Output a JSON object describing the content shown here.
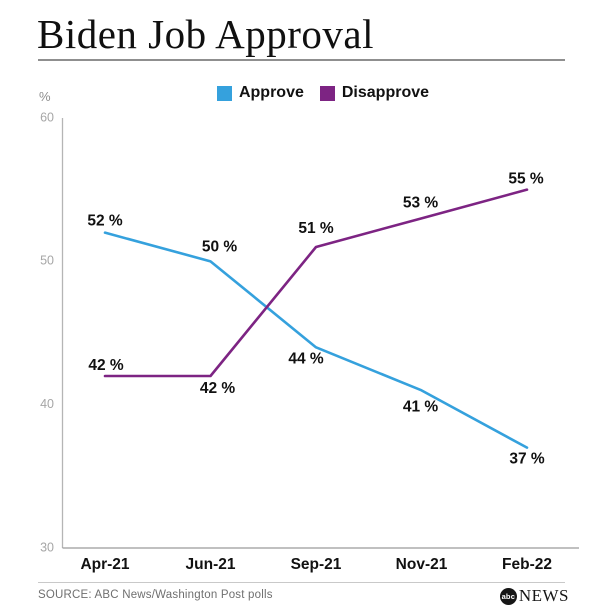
{
  "header": {
    "title": "Biden Job Approval"
  },
  "chart_data": {
    "type": "line",
    "x": [
      "Apr-21",
      "Jun-21",
      "Sep-21",
      "Nov-21",
      "Feb-22"
    ],
    "series": [
      {
        "name": "Approve",
        "color": "#35a1dd",
        "values": [
          52,
          50,
          44,
          41,
          37
        ]
      },
      {
        "name": "Disapprove",
        "color": "#7d2483",
        "values": [
          42,
          42,
          51,
          53,
          55
        ]
      }
    ],
    "title": "Biden Job Approval",
    "xlabel": "",
    "ylabel": "%",
    "ylim": [
      30,
      60
    ],
    "yticks": [
      30,
      40,
      50,
      60
    ],
    "value_label_suffix": " %",
    "legend_position": "top-center",
    "grid": false,
    "axis_color": "#b5b5b5",
    "tick_label_color": "#a6a6a6"
  },
  "footer": {
    "source": "SOURCE: ABC News/Washington Post polls",
    "logo": {
      "circle_text": "abc",
      "wordmark": "NEWS"
    }
  }
}
